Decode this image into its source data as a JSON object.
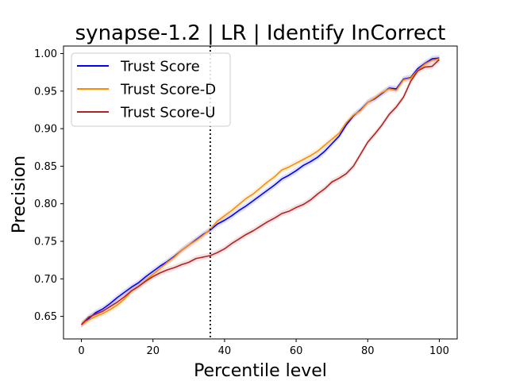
{
  "chart_data": {
    "type": "line",
    "title": "synapse-1.2 | LR | Identify InCorrect",
    "xlabel": "Percentile level",
    "ylabel": "Precision",
    "xlim": [
      -5,
      105
    ],
    "ylim": [
      0.62,
      1.01
    ],
    "xticks": [
      0,
      20,
      40,
      60,
      80,
      100
    ],
    "xtick_labels": [
      "0",
      "20",
      "40",
      "60",
      "80",
      "100"
    ],
    "yticks": [
      0.65,
      0.7,
      0.75,
      0.8,
      0.85,
      0.9,
      0.95,
      1.0
    ],
    "ytick_labels": [
      "0.65",
      "0.70",
      "0.75",
      "0.80",
      "0.85",
      "0.90",
      "0.95",
      "1.00"
    ],
    "grid": false,
    "legend_position": "top-left",
    "vline": {
      "x": 36,
      "style": "dotted",
      "color": "#000000"
    },
    "x": [
      0,
      2,
      4,
      6,
      8,
      10,
      12,
      14,
      16,
      18,
      20,
      22,
      24,
      26,
      28,
      30,
      32,
      34,
      36,
      38,
      40,
      42,
      44,
      46,
      48,
      50,
      52,
      54,
      56,
      58,
      60,
      62,
      64,
      66,
      68,
      70,
      72,
      74,
      76,
      78,
      80,
      82,
      84,
      86,
      88,
      90,
      92,
      94,
      96,
      98,
      100
    ],
    "series": [
      {
        "name": "Trust Score",
        "color": "#0000ff",
        "values": [
          0.639,
          0.647,
          0.655,
          0.66,
          0.667,
          0.675,
          0.682,
          0.689,
          0.695,
          0.703,
          0.71,
          0.717,
          0.723,
          0.73,
          0.738,
          0.745,
          0.752,
          0.759,
          0.765,
          0.773,
          0.778,
          0.784,
          0.791,
          0.797,
          0.804,
          0.811,
          0.818,
          0.825,
          0.833,
          0.838,
          0.844,
          0.851,
          0.856,
          0.862,
          0.87,
          0.88,
          0.89,
          0.905,
          0.917,
          0.925,
          0.935,
          0.94,
          0.947,
          0.954,
          0.953,
          0.966,
          0.968,
          0.98,
          0.987,
          0.993,
          0.994
        ]
      },
      {
        "name": "Trust Score-D",
        "color": "#ff8c00",
        "values": [
          0.639,
          0.645,
          0.65,
          0.654,
          0.659,
          0.665,
          0.673,
          0.684,
          0.69,
          0.698,
          0.706,
          0.714,
          0.722,
          0.729,
          0.738,
          0.745,
          0.751,
          0.758,
          0.766,
          0.777,
          0.784,
          0.791,
          0.799,
          0.807,
          0.813,
          0.821,
          0.829,
          0.836,
          0.845,
          0.849,
          0.854,
          0.859,
          0.864,
          0.87,
          0.878,
          0.886,
          0.894,
          0.908,
          0.918,
          0.924,
          0.935,
          0.941,
          0.948,
          0.953,
          0.951,
          0.965,
          0.967,
          0.978,
          0.986,
          0.991,
          0.993
        ]
      },
      {
        "name": "Trust Score-U",
        "color": "#b22222",
        "values": [
          0.639,
          0.649,
          0.653,
          0.657,
          0.663,
          0.669,
          0.676,
          0.684,
          0.69,
          0.697,
          0.703,
          0.708,
          0.712,
          0.715,
          0.719,
          0.722,
          0.727,
          0.729,
          0.731,
          0.735,
          0.74,
          0.747,
          0.753,
          0.759,
          0.764,
          0.77,
          0.776,
          0.781,
          0.787,
          0.79,
          0.795,
          0.799,
          0.805,
          0.813,
          0.82,
          0.829,
          0.834,
          0.84,
          0.85,
          0.866,
          0.882,
          0.893,
          0.905,
          0.919,
          0.929,
          0.942,
          0.963,
          0.977,
          0.982,
          0.983,
          0.992
        ]
      }
    ]
  }
}
